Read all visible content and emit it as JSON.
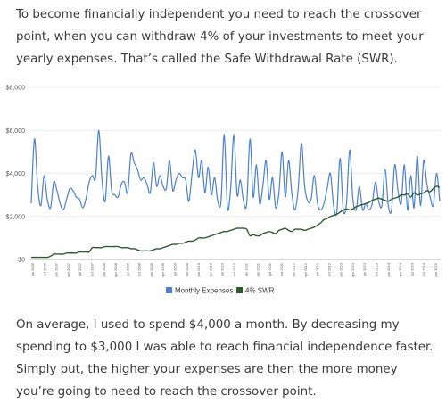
{
  "article": {
    "intro": "To become financially independent you need to reach the crossover point, when you can withdraw 4% of your investments to meet your yearly expenses. That’s called the Safe Withdrawal Rate (SWR).",
    "outro": "On average, I used to spend $4,000 a month. By decreasing my spending to $3,000 I was able to reach financial independence faster. Simply put, the higher your expenses are then the more money you’re going to need to reach the crossover point."
  },
  "chart_data": {
    "type": "line",
    "title": "",
    "xlabel": "",
    "ylabel": "",
    "ylim": [
      0,
      8000
    ],
    "yticks": [
      "$0",
      "$2,000",
      "$4,000",
      "$6,000",
      "$8,000"
    ],
    "ytick_values": [
      0,
      2000,
      4000,
      6000,
      8000
    ],
    "grid": true,
    "legend_position": "bottom-center",
    "x_tick_labels": [
      "jul 2006",
      "oct 2006",
      "jan 2007",
      "apr 2007",
      "jul 2007",
      "oct 2007",
      "jan 2008",
      "apr 2008",
      "jul 2008",
      "oct 2008",
      "jan 2009",
      "apr 2009",
      "jul 2009",
      "oct 2009",
      "jan 2010",
      "apr 2010",
      "jul 2010",
      "oct 2010",
      "jan 2011",
      "apr 2011",
      "jul 2011",
      "oct 2011",
      "jan 2012",
      "apr 2012",
      "jul 2012",
      "oct 2012",
      "jan 2013",
      "apr 2013",
      "jul 2013",
      "oct 2013",
      "jan 2014",
      "apr 2014",
      "jul 2014",
      "oct 2014",
      "jan 2015"
    ],
    "series": [
      {
        "name": "Monthly Expenses",
        "color": "#4a7fd0",
        "values": [
          2600,
          5600,
          3400,
          2500,
          3900,
          2800,
          2400,
          3600,
          3200,
          2600,
          2300,
          2800,
          3300,
          3200,
          2900,
          2800,
          2400,
          2800,
          3600,
          3900,
          3800,
          6000,
          3700,
          2700,
          4800,
          3200,
          3000,
          2900,
          3500,
          3600,
          3100,
          4900,
          4500,
          4200,
          3700,
          3800,
          3500,
          3100,
          4500,
          3400,
          3900,
          3400,
          3300,
          4600,
          3200,
          3700,
          4000,
          3800,
          3700,
          2700,
          4000,
          5100,
          3800,
          4600,
          3100,
          4300,
          3000,
          3800,
          2700,
          2700,
          5800,
          2400,
          3300,
          5800,
          3000,
          3700,
          2700,
          2600,
          5600,
          2900,
          4400,
          2600,
          3400,
          4600,
          2800,
          3800,
          2400,
          3100,
          5000,
          2900,
          4600,
          3100,
          2300,
          3300,
          5400,
          3400,
          2700,
          2800,
          3900,
          2600,
          2300,
          2600,
          3300,
          4000,
          2500,
          2200,
          4700,
          2300,
          2600,
          5100,
          2800,
          2300,
          3400,
          2300,
          2600,
          2300,
          2600,
          3600,
          2700,
          2500,
          4200,
          2500,
          2300,
          4400,
          3200,
          2600,
          4400,
          2300,
          3900,
          2400,
          4800,
          2500,
          4600,
          3500,
          2900,
          2500,
          4000,
          2700
        ]
      },
      {
        "name": "4% SWR",
        "color": "#2e5a2a",
        "values": [
          100,
          100,
          100,
          100,
          100,
          100,
          150,
          250,
          250,
          250,
          250,
          300,
          300,
          300,
          300,
          350,
          350,
          350,
          350,
          550,
          550,
          550,
          550,
          600,
          600,
          600,
          600,
          600,
          550,
          550,
          550,
          500,
          500,
          450,
          400,
          400,
          400,
          400,
          450,
          500,
          500,
          550,
          600,
          650,
          700,
          700,
          750,
          750,
          800,
          850,
          850,
          900,
          1000,
          1000,
          1000,
          1050,
          1100,
          1150,
          1200,
          1250,
          1300,
          1300,
          1350,
          1400,
          1450,
          1450,
          1450,
          1400,
          1100,
          1150,
          1100,
          1100,
          1200,
          1250,
          1300,
          1250,
          1200,
          1350,
          1400,
          1450,
          1350,
          1300,
          1400,
          1400,
          1400,
          1350,
          1400,
          1450,
          1500,
          1600,
          1700,
          1850,
          1900,
          2000,
          2050,
          2100,
          2200,
          2300,
          2350,
          2300,
          2350,
          2450,
          2500,
          2550,
          2600,
          2650,
          2750,
          2800,
          2850,
          2800,
          2750,
          2700,
          2800,
          2850,
          2900,
          3000,
          3000,
          3050,
          2900,
          3100,
          3000,
          3050,
          3100,
          3200,
          3150,
          3300,
          3400,
          3350
        ]
      }
    ]
  }
}
